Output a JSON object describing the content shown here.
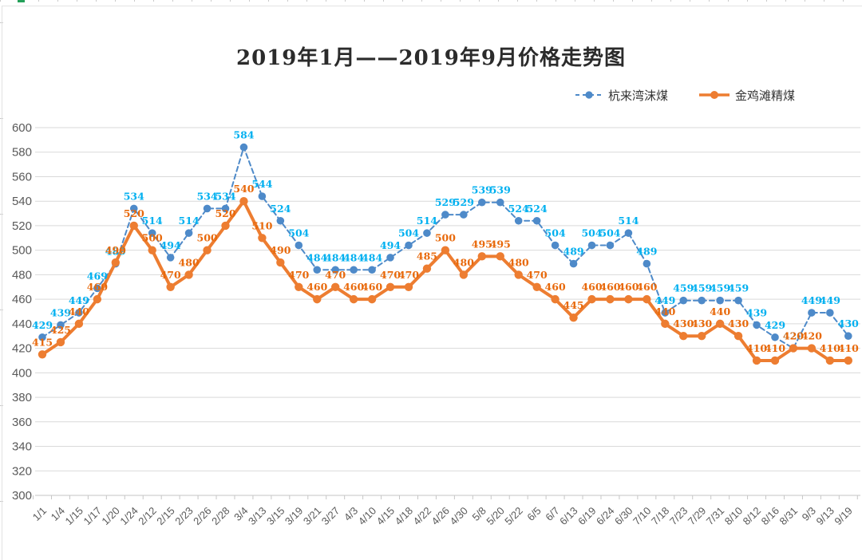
{
  "title": "2019年1月——2019年9月价格走势图",
  "legend": {
    "items": [
      {
        "label": "杭来湾沫煤"
      },
      {
        "label": "金鸡滩精煤"
      }
    ]
  },
  "chart_data": {
    "type": "line",
    "title": "2019年1月——2019年9月价格走势图",
    "categories": [
      "1/1",
      "1/4",
      "1/15",
      "1/17",
      "1/20",
      "1/24",
      "2/12",
      "2/15",
      "2/23",
      "2/26",
      "2/28",
      "3/4",
      "3/13",
      "3/15",
      "3/19",
      "3/21",
      "3/27",
      "4/3",
      "4/10",
      "4/15",
      "4/18",
      "4/22",
      "4/26",
      "4/30",
      "5/8",
      "5/20",
      "5/22",
      "6/5",
      "6/7",
      "6/13",
      "6/19",
      "6/24",
      "6/30",
      "7/10",
      "7/18",
      "7/23",
      "7/29",
      "7/31",
      "8/10",
      "8/12",
      "8/16",
      "8/31",
      "9/3",
      "9/13",
      "9/19"
    ],
    "series": [
      {
        "name": "杭来湾沫煤",
        "style": "dashed",
        "line_color": "#4E8AC9",
        "label_color": "#00B0F0",
        "values": [
          429,
          439,
          449,
          469,
          489,
          534,
          514,
          494,
          514,
          534,
          534,
          584,
          544,
          524,
          504,
          484,
          484,
          484,
          484,
          494,
          504,
          514,
          529,
          529,
          539,
          539,
          524,
          524,
          504,
          489,
          504,
          504,
          514,
          489,
          449,
          459,
          459,
          459,
          459,
          439,
          429,
          420,
          449,
          449,
          430
        ]
      },
      {
        "name": "金鸡滩精煤",
        "style": "solid",
        "line_color": "#ED7D31",
        "label_color": "#E8690B",
        "values": [
          415,
          425,
          440,
          460,
          490,
          520,
          500,
          470,
          480,
          500,
          520,
          540,
          510,
          490,
          470,
          460,
          470,
          460,
          460,
          470,
          470,
          485,
          500,
          480,
          495,
          495,
          480,
          470,
          460,
          445,
          460,
          460,
          460,
          460,
          440,
          430,
          430,
          440,
          430,
          410,
          410,
          420,
          420,
          410,
          410
        ]
      }
    ],
    "y_axis": {
      "min": 300,
      "max": 600,
      "step": 20,
      "ticks": [
        600,
        580,
        560,
        540,
        520,
        500,
        480,
        460,
        440,
        420,
        400,
        380,
        360,
        340,
        320,
        300
      ],
      "text_color": "#595959"
    },
    "x_axis": {
      "text_color": "#595959",
      "rotation": -45
    },
    "grid": {
      "horizontal": true,
      "vertical": false,
      "color": "#D9D9D9"
    },
    "legend_position": "top-right",
    "data_labels": true
  }
}
